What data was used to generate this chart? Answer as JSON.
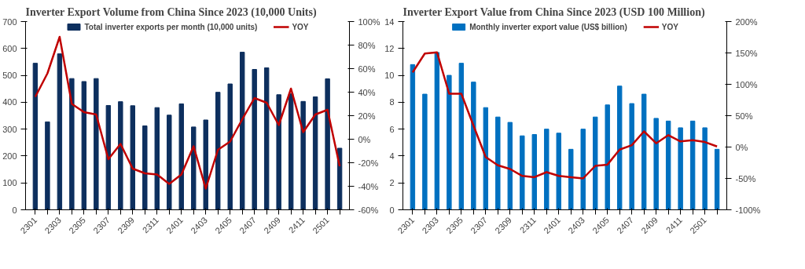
{
  "chart_data": [
    {
      "type": "bar",
      "title": "Inverter Export Volume from China Since 2023 (10,000 Units)",
      "categories": [
        "2301",
        null,
        "2303",
        null,
        "2305",
        null,
        "2307",
        null,
        "2309",
        null,
        "2311",
        null,
        "2401",
        null,
        "2403",
        null,
        "2405",
        null,
        "2407",
        null,
        "2409",
        null,
        "2411",
        null,
        "2501",
        null
      ],
      "series": [
        {
          "name": "Total inverter exports per month (10,000 units)",
          "color": "#0d2f5e",
          "values": [
            545,
            327,
            580,
            488,
            477,
            488,
            388,
            402,
            387,
            312,
            380,
            352,
            394,
            308,
            334,
            437,
            468,
            586,
            522,
            528,
            428,
            432,
            403,
            420,
            487,
            229
          ]
        },
        {
          "name": "YOY",
          "type": "line",
          "axis": "y2",
          "color": "#c00000",
          "values": [
            36,
            56,
            87,
            30,
            23,
            21,
            -17,
            -4,
            -25,
            -29,
            -30,
            -38,
            -30,
            -6,
            -42,
            -9,
            -2,
            17,
            35,
            31,
            12,
            43,
            6,
            21,
            25,
            -23
          ]
        }
      ],
      "ylim": [
        0,
        700
      ],
      "yticks": [
        0,
        100,
        200,
        300,
        400,
        500,
        600,
        700
      ],
      "y2lim": [
        -60,
        100
      ],
      "y2ticks": [
        {
          "value": -60,
          "label": "-60%"
        },
        {
          "value": -40,
          "label": "-40%"
        },
        {
          "value": -20,
          "label": "-20%"
        },
        {
          "value": 0,
          "label": "0%"
        },
        {
          "value": 20,
          "label": "20%"
        },
        {
          "value": 40,
          "label": "40%"
        },
        {
          "value": 60,
          "label": "60%"
        },
        {
          "value": 80,
          "label": "80%"
        },
        {
          "value": 100,
          "label": "100%"
        }
      ],
      "legend": "top",
      "grid": false
    },
    {
      "type": "bar",
      "title": "Inverter Export Value from China Since 2023 (USD 100 Million)",
      "categories": [
        "2301",
        null,
        "2303",
        null,
        "2305",
        null,
        "2307",
        null,
        "2309",
        null,
        "2311",
        null,
        "2401",
        null,
        "2403",
        null,
        "2405",
        null,
        "2407",
        null,
        "2409",
        null,
        "2411",
        null,
        "2501",
        null
      ],
      "series": [
        {
          "name": "Monthly inverter export value (US$ billion)",
          "color": "#0070c0",
          "values": [
            10.8,
            8.6,
            11.7,
            10.0,
            10.9,
            9.5,
            7.6,
            6.9,
            6.5,
            5.5,
            5.6,
            6.0,
            5.7,
            4.5,
            6.0,
            6.9,
            7.8,
            9.2,
            7.9,
            8.6,
            6.8,
            6.6,
            6.1,
            6.6,
            6.1,
            4.5
          ]
        },
        {
          "name": "YOY",
          "type": "line",
          "axis": "y2",
          "color": "#c00000",
          "values": [
            119,
            149,
            151,
            85,
            85,
            34,
            -16,
            -29,
            -35,
            -46,
            -48,
            -40,
            -46,
            -48,
            -50,
            -30,
            -28,
            -4,
            3,
            25,
            6,
            19,
            9,
            11,
            8,
            1
          ]
        }
      ],
      "ylim": [
        0,
        14
      ],
      "yticks": [
        0,
        2,
        4,
        6,
        8,
        10,
        12,
        14
      ],
      "y2lim": [
        -100,
        200
      ],
      "y2ticks": [
        {
          "value": -100,
          "label": "-100%"
        },
        {
          "value": -50,
          "label": "-50%"
        },
        {
          "value": 0,
          "label": "0%"
        },
        {
          "value": 50,
          "label": "50%"
        },
        {
          "value": 100,
          "label": "100%"
        },
        {
          "value": 150,
          "label": "150%"
        },
        {
          "value": 200,
          "label": "200%"
        }
      ],
      "legend": "top",
      "grid": false
    }
  ]
}
